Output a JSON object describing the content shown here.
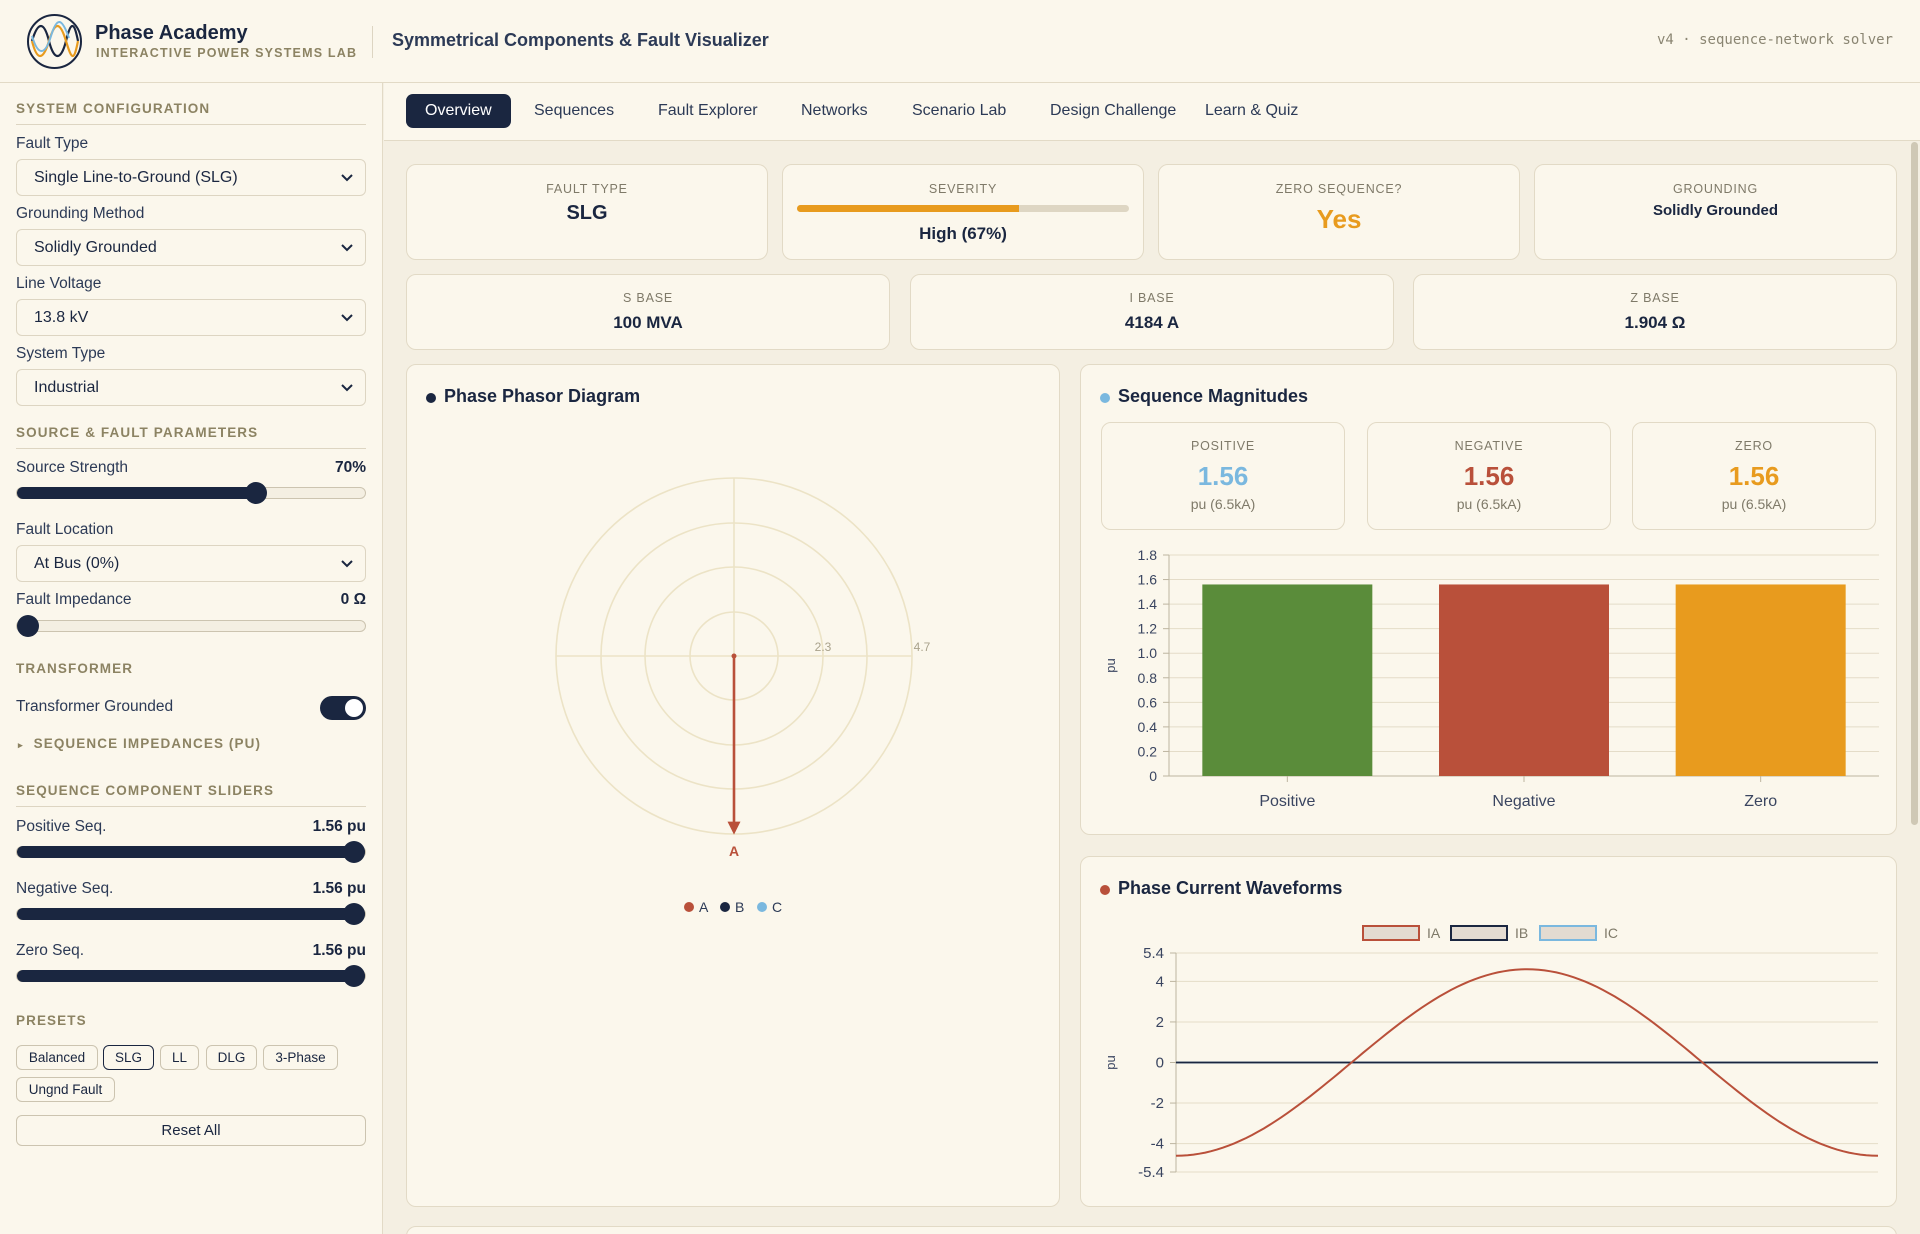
{
  "header": {
    "brand_name": "Phase Academy",
    "brand_sub": "INTERACTIVE POWER SYSTEMS LAB",
    "app_title": "Symmetrical Components & Fault Visualizer",
    "version": "v4 · sequence-network solver"
  },
  "sidebar": {
    "system_config_heading": "SYSTEM CONFIGURATION",
    "fault_type_label": "Fault Type",
    "fault_type_value": "Single Line-to-Ground (SLG)",
    "grounding_label": "Grounding Method",
    "grounding_value": "Solidly Grounded",
    "line_voltage_label": "Line Voltage",
    "line_voltage_value": "13.8 kV",
    "system_type_label": "System Type",
    "system_type_value": "Industrial",
    "source_fault_heading": "SOURCE & FAULT PARAMETERS",
    "source_strength_label": "Source Strength",
    "source_strength_value": "70%",
    "source_strength_fraction": 0.7,
    "fault_location_label": "Fault Location",
    "fault_location_value": "At Bus (0%)",
    "fault_impedance_label": "Fault Impedance",
    "fault_impedance_value": "0 Ω",
    "fault_impedance_fraction": 0,
    "transformer_heading": "TRANSFORMER",
    "transformer_grounded_label": "Transformer Grounded",
    "transformer_grounded_on": true,
    "seq_impedances_label": "SEQUENCE IMPEDANCES (PU)",
    "seq_sliders_heading": "SEQUENCE COMPONENT SLIDERS",
    "positive_label": "Positive Seq.",
    "positive_value": "1.56 pu",
    "negative_label": "Negative Seq.",
    "negative_value": "1.56 pu",
    "zero_label": "Zero Seq.",
    "zero_value": "1.56 pu",
    "seq_slider_fraction": 1.0,
    "presets_heading": "PRESETS",
    "presets": [
      "Balanced",
      "SLG",
      "LL",
      "DLG",
      "3-Phase",
      "Ungnd Fault"
    ],
    "active_preset": "SLG",
    "reset_label": "Reset All"
  },
  "tabs": [
    "Overview",
    "Sequences",
    "Fault Explorer",
    "Networks",
    "Scenario Lab",
    "Design Challenge",
    "Learn & Quiz"
  ],
  "active_tab": "Overview",
  "stats": {
    "fault_type_label": "FAULT TYPE",
    "fault_type_value": "SLG",
    "severity_label": "SEVERITY",
    "severity_value": "High (67%)",
    "severity_fraction": 0.67,
    "zero_seq_label": "ZERO SEQUENCE?",
    "zero_seq_value": "Yes",
    "grounding_label": "GROUNDING",
    "grounding_value": "Solidly Grounded",
    "s_base_label": "S BASE",
    "s_base_value": "100 MVA",
    "i_base_label": "I BASE",
    "i_base_value": "4184 A",
    "z_base_label": "Z BASE",
    "z_base_value": "1.904 Ω"
  },
  "phasor": {
    "title": "Phase Phasor Diagram",
    "ring_labels": [
      "2.3",
      "4.7"
    ],
    "legend": [
      "A",
      "B",
      "C"
    ],
    "phasor_label": "A",
    "colors": {
      "A": "#b9503a",
      "B": "#1a2640",
      "C": "#7ab8df"
    }
  },
  "sequence": {
    "title": "Sequence Magnitudes",
    "cards": [
      {
        "label": "POSITIVE",
        "value": "1.56",
        "sub": "pu (6.5kA)",
        "color": "#7ab8df"
      },
      {
        "label": "NEGATIVE",
        "value": "1.56",
        "sub": "pu (6.5kA)",
        "color": "#b9503a"
      },
      {
        "label": "ZERO",
        "value": "1.56",
        "sub": "pu (6.5kA)",
        "color": "#e89b1e"
      }
    ]
  },
  "waveform": {
    "title": "Phase Current Waveforms"
  },
  "chart_data": [
    {
      "type": "bar",
      "categories": [
        "Positive",
        "Negative",
        "Zero"
      ],
      "values": [
        1.56,
        1.56,
        1.56
      ],
      "colors": [
        "#5a8c3a",
        "#b9503a",
        "#e89b1e"
      ],
      "ylabel": "pu",
      "ylim": [
        0,
        1.8
      ],
      "yticks": [
        "1.8",
        "1.6",
        "1.4",
        "1.2",
        "1.0",
        "0.8",
        "0.6",
        "0.4",
        "0.2",
        "0"
      ],
      "grid": true
    },
    {
      "type": "line",
      "series": [
        {
          "name": "IA",
          "color": "#b9503a",
          "amplitude": 4.6,
          "samples": [
            [
              0,
              -4.6
            ],
            [
              0.25,
              0
            ],
            [
              0.5,
              4.6
            ],
            [
              0.75,
              0
            ],
            [
              1,
              -4.6
            ]
          ]
        },
        {
          "name": "IB",
          "color": "#1a2640",
          "amplitude": 0,
          "samples": [
            [
              0,
              0
            ],
            [
              1,
              0
            ]
          ]
        },
        {
          "name": "IC",
          "color": "#7ab8df",
          "amplitude": 0,
          "samples": [
            [
              0,
              0
            ],
            [
              1,
              0
            ]
          ]
        }
      ],
      "ylabel": "pu",
      "ylim": [
        -5.4,
        5.4
      ],
      "yticks": [
        "5.4",
        "4",
        "2",
        "0",
        "-2",
        "-4",
        "-5.4"
      ],
      "legend": "top-center",
      "grid": true
    }
  ]
}
